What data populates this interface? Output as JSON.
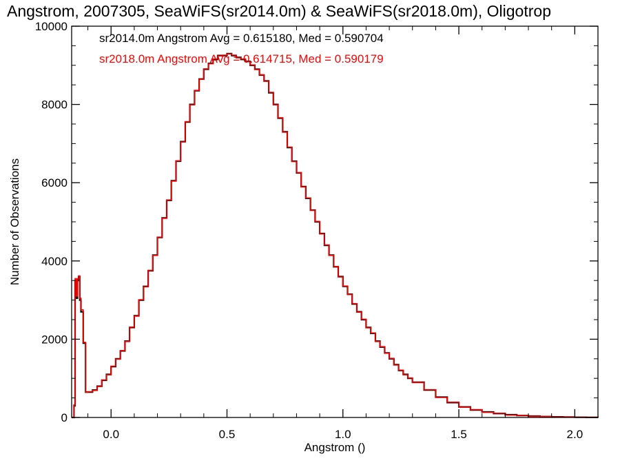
{
  "chart_data": {
    "type": "line",
    "title": "Angstrom, 2007305, SeaWiFS(sr2014.0m) & SeaWiFS(sr2018.0m), Oligotrop",
    "xlabel": "Angstrom ()",
    "ylabel": "Number of Observations",
    "xlim": [
      -0.17,
      2.1
    ],
    "ylim": [
      0,
      10000
    ],
    "x_ticks": [
      "0.0",
      "0.5",
      "1.0",
      "1.5",
      "2.0"
    ],
    "x_tick_values": [
      0.0,
      0.5,
      1.0,
      1.5,
      2.0
    ],
    "y_ticks": [
      "0",
      "2000",
      "4000",
      "6000",
      "8000",
      "10000"
    ],
    "y_tick_values": [
      0,
      2000,
      4000,
      6000,
      8000,
      10000
    ],
    "grid": false,
    "step": true,
    "annotations": [
      {
        "text": "sr2014.0m Angstrom Avg = 0.615180, Med = 0.590704",
        "color": "#000000"
      },
      {
        "text": "sr2018.0m Angstrom Avg = 0.614715, Med = 0.590179",
        "color": "#ff0000"
      }
    ],
    "series": [
      {
        "color": "#000000",
        "x": [
          -0.17,
          -0.16,
          -0.155,
          -0.15,
          -0.145,
          -0.14,
          -0.135,
          -0.13,
          -0.12,
          -0.11,
          -0.1,
          -0.08,
          -0.06,
          -0.04,
          -0.02,
          0.0,
          0.02,
          0.04,
          0.06,
          0.08,
          0.1,
          0.12,
          0.14,
          0.16,
          0.18,
          0.2,
          0.22,
          0.24,
          0.26,
          0.28,
          0.3,
          0.32,
          0.34,
          0.36,
          0.38,
          0.4,
          0.42,
          0.44,
          0.46,
          0.48,
          0.5,
          0.52,
          0.54,
          0.56,
          0.58,
          0.6,
          0.62,
          0.64,
          0.66,
          0.68,
          0.7,
          0.72,
          0.74,
          0.76,
          0.78,
          0.8,
          0.82,
          0.84,
          0.86,
          0.88,
          0.9,
          0.92,
          0.94,
          0.96,
          0.98,
          1.0,
          1.02,
          1.04,
          1.06,
          1.08,
          1.1,
          1.12,
          1.14,
          1.16,
          1.18,
          1.2,
          1.22,
          1.24,
          1.26,
          1.28,
          1.3,
          1.35,
          1.4,
          1.45,
          1.5,
          1.55,
          1.6,
          1.65,
          1.7,
          1.75,
          1.8,
          1.85,
          1.9,
          1.95,
          2.0,
          2.05,
          2.1
        ],
        "y": [
          0,
          300,
          3500,
          3050,
          3500,
          3600,
          3000,
          2700,
          1900,
          650,
          650,
          700,
          800,
          950,
          1100,
          1300,
          1500,
          1700,
          1950,
          2300,
          2600,
          3000,
          3350,
          3750,
          4150,
          4600,
          5100,
          5550,
          6050,
          6550,
          7050,
          7550,
          8000,
          8350,
          8650,
          8900,
          9050,
          9150,
          9250,
          9250,
          9300,
          9250,
          9200,
          9150,
          9100,
          9000,
          8900,
          8750,
          8600,
          8300,
          8000,
          7650,
          7300,
          6900,
          6550,
          6250,
          5900,
          5600,
          5300,
          5000,
          4700,
          4400,
          4150,
          3850,
          3600,
          3350,
          3150,
          2900,
          2700,
          2500,
          2300,
          2150,
          1950,
          1800,
          1650,
          1500,
          1350,
          1200,
          1100,
          1000,
          900,
          700,
          520,
          380,
          270,
          190,
          140,
          100,
          70,
          50,
          35,
          25,
          15,
          10,
          5,
          2,
          0
        ]
      },
      {
        "color": "#ff0000",
        "x": [
          -0.17,
          -0.16,
          -0.155,
          -0.15,
          -0.145,
          -0.14,
          -0.135,
          -0.13,
          -0.12,
          -0.11,
          -0.1,
          -0.08,
          -0.06,
          -0.04,
          -0.02,
          0.0,
          0.02,
          0.04,
          0.06,
          0.08,
          0.1,
          0.12,
          0.14,
          0.16,
          0.18,
          0.2,
          0.22,
          0.24,
          0.26,
          0.28,
          0.3,
          0.32,
          0.34,
          0.36,
          0.38,
          0.4,
          0.42,
          0.44,
          0.46,
          0.48,
          0.5,
          0.52,
          0.54,
          0.56,
          0.58,
          0.6,
          0.62,
          0.64,
          0.66,
          0.68,
          0.7,
          0.72,
          0.74,
          0.76,
          0.78,
          0.8,
          0.82,
          0.84,
          0.86,
          0.88,
          0.9,
          0.92,
          0.94,
          0.96,
          0.98,
          1.0,
          1.02,
          1.04,
          1.06,
          1.08,
          1.1,
          1.12,
          1.14,
          1.16,
          1.18,
          1.2,
          1.22,
          1.24,
          1.26,
          1.28,
          1.3,
          1.35,
          1.4,
          1.45,
          1.5,
          1.55,
          1.6,
          1.65,
          1.7,
          1.75,
          1.8,
          1.85,
          1.9,
          1.95,
          2.0,
          2.05,
          2.1
        ],
        "y": [
          0,
          320,
          3550,
          3100,
          3550,
          3620,
          3050,
          2750,
          1920,
          640,
          660,
          690,
          790,
          960,
          1090,
          1310,
          1490,
          1710,
          1940,
          2310,
          2590,
          3010,
          3340,
          3760,
          4140,
          4610,
          5090,
          5560,
          6040,
          6560,
          7040,
          7560,
          7990,
          8360,
          8640,
          8910,
          9040,
          9160,
          9240,
          9260,
          9290,
          9260,
          9190,
          9160,
          9090,
          9010,
          8890,
          8760,
          8590,
          8310,
          7990,
          7660,
          7290,
          6910,
          6540,
          6260,
          5890,
          5610,
          5290,
          5010,
          4690,
          4410,
          4140,
          3860,
          3590,
          3360,
          3140,
          2910,
          2690,
          2510,
          2290,
          2160,
          1940,
          1810,
          1640,
          1510,
          1340,
          1210,
          1090,
          1010,
          890,
          710,
          510,
          390,
          260,
          200,
          130,
          110,
          60,
          55,
          30,
          28,
          12,
          12,
          4,
          3,
          0
        ]
      }
    ]
  }
}
